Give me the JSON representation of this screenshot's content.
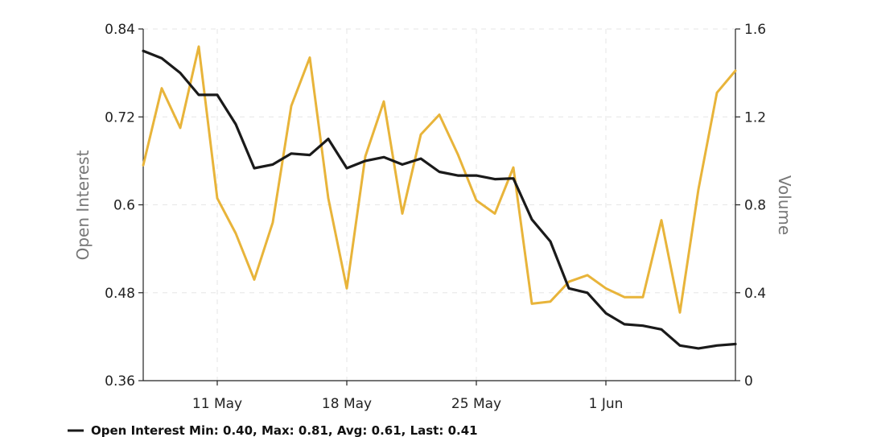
{
  "chart_data": {
    "type": "line",
    "x": [
      "2020-05-07",
      "2020-05-08",
      "2020-05-09",
      "2020-05-10",
      "2020-05-11",
      "2020-05-12",
      "2020-05-13",
      "2020-05-14",
      "2020-05-15",
      "2020-05-16",
      "2020-05-17",
      "2020-05-18",
      "2020-05-19",
      "2020-05-20",
      "2020-05-21",
      "2020-05-22",
      "2020-05-23",
      "2020-05-24",
      "2020-05-25",
      "2020-05-26",
      "2020-05-27",
      "2020-05-28",
      "2020-05-29",
      "2020-05-30",
      "2020-05-31",
      "2020-06-01",
      "2020-06-02",
      "2020-06-03",
      "2020-06-04",
      "2020-06-05",
      "2020-06-06",
      "2020-06-07",
      "2020-06-08"
    ],
    "x_ticks": [
      {
        "date": "2020-05-11",
        "label": "11 May"
      },
      {
        "date": "2020-05-18",
        "label": "18 May"
      },
      {
        "date": "2020-05-25",
        "label": "25 May"
      },
      {
        "date": "2020-06-01",
        "label": "1 Jun"
      }
    ],
    "y_left": {
      "label": "Open Interest",
      "range": [
        0.36,
        0.84
      ],
      "ticks": [
        "0.36",
        "0.48",
        "0.6",
        "0.72",
        "0.84"
      ]
    },
    "y_right": {
      "label": "Volume",
      "range": [
        0,
        1.6
      ],
      "ticks": [
        "0",
        "0.4",
        "0.8",
        "1.2",
        "1.6"
      ]
    },
    "grid": true,
    "series": [
      {
        "name": "Open Interest",
        "axis": "left",
        "color": "#1a1a1a",
        "values": [
          0.81,
          0.8,
          0.78,
          0.75,
          0.75,
          0.71,
          0.65,
          0.655,
          0.67,
          0.668,
          0.69,
          0.65,
          0.66,
          0.665,
          0.655,
          0.663,
          0.645,
          0.64,
          0.64,
          0.635,
          0.636,
          0.58,
          0.55,
          0.486,
          0.48,
          0.452,
          0.437,
          0.435,
          0.43,
          0.408,
          0.404,
          0.408,
          0.41
        ]
      },
      {
        "name": "Volume",
        "axis": "right",
        "color": "#e8b43a",
        "values": [
          0.98,
          1.33,
          1.15,
          1.52,
          0.83,
          0.67,
          0.46,
          0.72,
          1.25,
          1.47,
          0.83,
          0.42,
          1.02,
          1.27,
          0.76,
          1.12,
          1.21,
          1.03,
          0.82,
          0.76,
          0.97,
          0.35,
          0.36,
          0.45,
          0.48,
          0.42,
          0.38,
          0.38,
          0.73,
          0.31,
          0.87,
          1.31,
          1.41
        ]
      }
    ],
    "legend": {
      "position": "bottom-left",
      "text": "Open Interest Min: 0.40, Max: 0.81, Avg: 0.61, Last: 0.41"
    }
  }
}
